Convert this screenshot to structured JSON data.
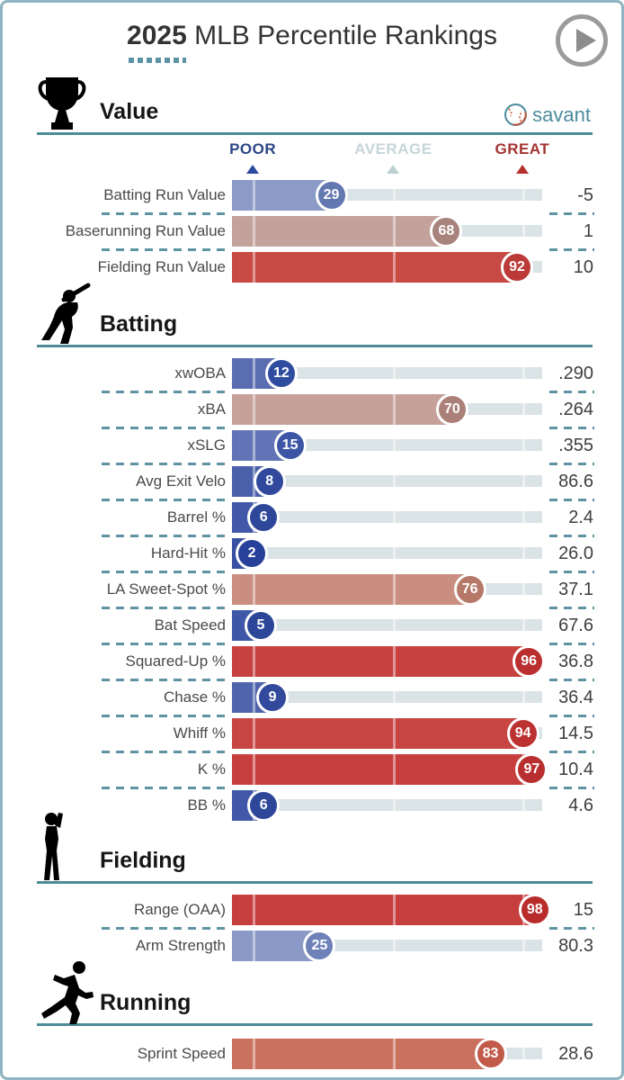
{
  "header": {
    "year": "2025",
    "title_rest": " MLB Percentile Rankings"
  },
  "branding": {
    "logo_text": "savant"
  },
  "scale": {
    "poor": "POOR",
    "average": "AVERAGE",
    "great": "GREAT"
  },
  "colors": {
    "card_border": "#8fb3c0",
    "accent_teal": "#4d8b99",
    "title_text": "#333333",
    "title_dots": "#5b93a5",
    "logo_teal": "#4c8c9d",
    "logo_orange": "#c2593b",
    "play_gray": "#9b9b9b",
    "track_gray": "#dae3e5",
    "dash_teal": "#5f93a2",
    "poor_label": "#2c4586",
    "average_label": "#c6d5d9",
    "great_label": "#a33431"
  },
  "chart_data": {
    "type": "bar",
    "orientation": "horizontal",
    "title": "2025 MLB Percentile Rankings",
    "scale_range": [
      0,
      100
    ],
    "scale_markers": [
      {
        "label": "POOR",
        "position_pct": 6.7
      },
      {
        "label": "AVERAGE",
        "position_pct": 52
      },
      {
        "label": "GREAT",
        "position_pct": 93.6
      }
    ],
    "groups": [
      {
        "name": "Value",
        "icon": "trophy-icon",
        "show_scale_header": true,
        "show_logo": true,
        "rows": [
          {
            "label": "Batting Run Value",
            "percentile": 29,
            "value": "-5",
            "bar_color": "#8b9ac7",
            "circle_color": "#6377b0"
          },
          {
            "label": "Baserunning Run Value",
            "percentile": 68,
            "value": "1",
            "bar_color": "#c3a29b",
            "circle_color": "#a8837c"
          },
          {
            "label": "Fielding Run Value",
            "percentile": 92,
            "value": "10",
            "bar_color": "#c74a45",
            "circle_color": "#bc3a38"
          }
        ]
      },
      {
        "name": "Batting",
        "icon": "batter-icon",
        "show_scale_header": false,
        "show_logo": false,
        "rows": [
          {
            "label": "xwOBA",
            "percentile": 12,
            "value": ".290",
            "bar_color": "#5a6db1",
            "circle_color": "#2f4c9f"
          },
          {
            "label": "xBA",
            "percentile": 70,
            "value": ".264",
            "bar_color": "#c5a19a",
            "circle_color": "#aa8078"
          },
          {
            "label": "xSLG",
            "percentile": 15,
            "value": ".355",
            "bar_color": "#6274b5",
            "circle_color": "#3c56a5"
          },
          {
            "label": "Avg Exit Velo",
            "percentile": 8,
            "value": "86.6",
            "bar_color": "#4a60ab",
            "circle_color": "#31499c"
          },
          {
            "label": "Barrel %",
            "percentile": 6,
            "value": "2.4",
            "bar_color": "#4158a8",
            "circle_color": "#2e479a"
          },
          {
            "label": "Hard-Hit %",
            "percentile": 2,
            "value": "26.0",
            "bar_color": "#3850a2",
            "circle_color": "#27409a"
          },
          {
            "label": "LA Sweet-Spot %",
            "percentile": 76,
            "value": "37.1",
            "bar_color": "#c98e80",
            "circle_color": "#b57869"
          },
          {
            "label": "Bat Speed",
            "percentile": 5,
            "value": "67.6",
            "bar_color": "#3f57a7",
            "circle_color": "#2c4699"
          },
          {
            "label": "Squared-Up %",
            "percentile": 96,
            "value": "36.8",
            "bar_color": "#c64140",
            "circle_color": "#ba2f2f"
          },
          {
            "label": "Chase %",
            "percentile": 9,
            "value": "36.4",
            "bar_color": "#4f64ad",
            "circle_color": "#32499c"
          },
          {
            "label": "Whiff %",
            "percentile": 94,
            "value": "14.5",
            "bar_color": "#c74542",
            "circle_color": "#bb3231"
          },
          {
            "label": "K %",
            "percentile": 97,
            "value": "10.4",
            "bar_color": "#c63f3e",
            "circle_color": "#b92e2e"
          },
          {
            "label": "BB %",
            "percentile": 6,
            "value": "4.6",
            "bar_color": "#4158a8",
            "circle_color": "#2e479a"
          }
        ]
      },
      {
        "name": "Fielding",
        "icon": "fielder-icon",
        "show_scale_header": false,
        "show_logo": false,
        "rows": [
          {
            "label": "Range (OAA)",
            "percentile": 98,
            "value": "15",
            "bar_color": "#c63e3d",
            "circle_color": "#b82d2c"
          },
          {
            "label": "Arm Strength",
            "percentile": 25,
            "value": "80.3",
            "bar_color": "#8b99c6",
            "circle_color": "#6e82b9"
          }
        ]
      },
      {
        "name": "Running",
        "icon": "runner-icon",
        "show_scale_header": false,
        "show_logo": false,
        "rows": [
          {
            "label": "Sprint Speed",
            "percentile": 83,
            "value": "28.6",
            "bar_color": "#ca705e",
            "circle_color": "#c15a49"
          }
        ]
      }
    ]
  }
}
